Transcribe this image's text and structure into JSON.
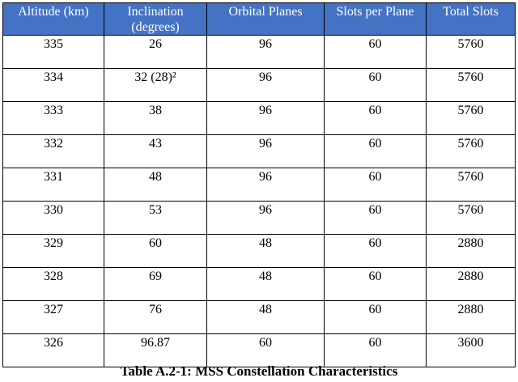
{
  "table": {
    "header": [
      "Altitude (km)",
      "Inclination (degrees)",
      "Orbital Planes",
      "Slots per Plane",
      "Total Slots"
    ],
    "rows": [
      [
        "335",
        "26",
        "96",
        "60",
        "5760"
      ],
      [
        "334",
        "32 (28)²",
        "96",
        "60",
        "5760"
      ],
      [
        "333",
        "38",
        "96",
        "60",
        "5760"
      ],
      [
        "332",
        "43",
        "96",
        "60",
        "5760"
      ],
      [
        "331",
        "48",
        "96",
        "60",
        "5760"
      ],
      [
        "330",
        "53",
        "96",
        "60",
        "5760"
      ],
      [
        "329",
        "60",
        "48",
        "60",
        "2880"
      ],
      [
        "328",
        "69",
        "48",
        "60",
        "2880"
      ],
      [
        "327",
        "76",
        "48",
        "60",
        "2880"
      ],
      [
        "326",
        "96.87",
        "60",
        "60",
        "3600"
      ]
    ],
    "caption": "Table A.2-1: MSS Constellation Characteristics"
  }
}
